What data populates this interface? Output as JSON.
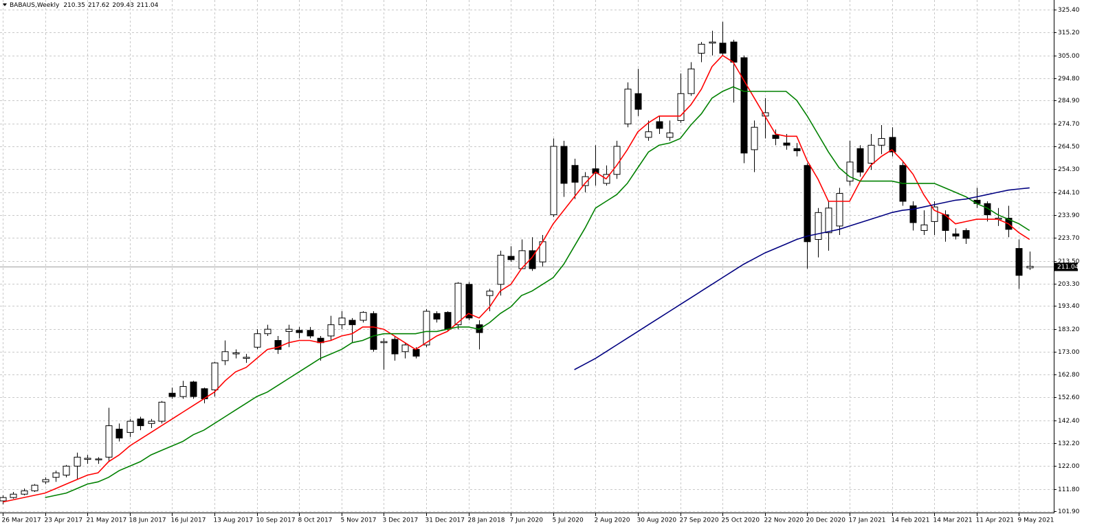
{
  "chart_data": {
    "type": "candlestick",
    "title": "BABAUS,Weekly",
    "categories": [
      "26 Mar 2017",
      null,
      null,
      null,
      "23 Apr 2017",
      null,
      null,
      null,
      "21 May 2017",
      null,
      null,
      null,
      "18 Jun 2017",
      null,
      null,
      null,
      "16 Jul 2017",
      null,
      null,
      null,
      "13 Aug 2017",
      null,
      null,
      null,
      "10 Sep 2017",
      null,
      null,
      null,
      "8 Oct 2017",
      null,
      null,
      null,
      "5 Nov 2017",
      null,
      null,
      null,
      "3 Dec 2017",
      null,
      null,
      null,
      "31 Dec 2017",
      null,
      null,
      null,
      "28 Jan 2018",
      null,
      null,
      null,
      "7 Jun 2020",
      null,
      null,
      null,
      "5 Jul 2020",
      null,
      null,
      null,
      "2 Aug 2020",
      null,
      null,
      null,
      "30 Aug 2020",
      null,
      null,
      null,
      "27 Sep 2020",
      null,
      null,
      null,
      "25 Oct 2020",
      null,
      null,
      null,
      "22 Nov 2020",
      null,
      null,
      null,
      "20 Dec 2020",
      null,
      null,
      null,
      "17 Jan 2021",
      null,
      null,
      null,
      "14 Feb 2021",
      null,
      null,
      null,
      "14 Mar 2021",
      null,
      null,
      null,
      "11 Apr 2021",
      null,
      null,
      null,
      "9 May 2021",
      null
    ],
    "open": [
      106.5,
      108,
      109.5,
      111,
      115,
      117,
      118,
      122,
      125,
      124.8,
      126,
      138.5,
      137,
      143,
      141,
      142,
      154.5,
      153,
      159.5,
      156.5,
      156,
      169,
      172,
      170,
      175,
      181,
      178,
      182,
      182.5,
      182.5,
      179,
      180,
      185,
      187,
      187,
      190,
      177,
      178.5,
      173,
      174,
      176,
      190,
      190.5,
      185,
      203,
      185,
      198,
      203,
      215.5,
      210,
      218,
      213,
      234,
      264.5,
      256,
      247,
      254.5,
      248,
      252,
      274.5,
      288,
      268.5,
      275.5,
      268.5,
      276,
      288,
      306,
      310.5,
      310.5,
      311,
      304,
      263,
      278,
      269.5,
      266,
      263.5,
      256,
      223,
      226,
      229,
      249,
      263.5,
      257,
      265,
      268.5,
      256,
      238,
      227,
      231,
      234,
      225.5,
      227,
      240.5,
      239,
      232,
      232.5,
      219,
      210.35
    ],
    "high": [
      109,
      110.5,
      112,
      114,
      117,
      120,
      122.5,
      128,
      127,
      126,
      148,
      141,
      143,
      144,
      143,
      151,
      157,
      160,
      160,
      157,
      168.5,
      178,
      174,
      172,
      183,
      185,
      180,
      185,
      184,
      184,
      180,
      189,
      191,
      188,
      191,
      191,
      179,
      180,
      177,
      175,
      192,
      191,
      191,
      204,
      204,
      187,
      201,
      218,
      220,
      223,
      224,
      225,
      268,
      267,
      259,
      253,
      265,
      256,
      267,
      293,
      299,
      276,
      278,
      276,
      297,
      302,
      311,
      316,
      320,
      312,
      305,
      276,
      286,
      272,
      270,
      266,
      257,
      237,
      240,
      246,
      267,
      265,
      270,
      274,
      273,
      258,
      240,
      236,
      240,
      236,
      228,
      228,
      246,
      240,
      237,
      238,
      223,
      217.62
    ],
    "low": [
      105,
      107.5,
      109,
      110.5,
      114,
      115,
      117,
      116,
      123,
      123,
      124,
      133,
      135,
      138,
      139,
      141,
      152,
      152,
      152,
      150,
      153,
      167,
      170,
      168,
      174,
      180,
      172,
      175,
      179,
      179,
      169,
      178,
      183,
      177,
      186,
      173,
      165,
      169,
      170,
      170,
      175,
      186,
      182,
      183,
      187,
      174,
      191,
      198,
      213,
      210,
      209,
      211,
      233,
      242,
      241,
      244,
      247,
      247,
      250,
      273,
      278,
      267,
      270,
      267,
      275,
      287,
      302,
      305,
      305,
      284,
      257,
      253,
      268,
      265,
      263,
      260,
      210,
      215,
      218,
      225,
      247,
      251,
      254,
      261,
      260,
      238,
      227,
      225,
      225,
      222,
      223,
      221,
      237,
      231,
      229,
      224,
      201,
      209.43
    ],
    "close": [
      108,
      109.5,
      111,
      113.5,
      116,
      119,
      122,
      126,
      125.5,
      125.2,
      140,
      134.5,
      142,
      140,
      142,
      150.5,
      153,
      157.5,
      153,
      152,
      168,
      173,
      172.5,
      170.5,
      181,
      183,
      174,
      183,
      181.5,
      180,
      177,
      185,
      188,
      185,
      190.5,
      174,
      177.5,
      172,
      176,
      171,
      191,
      187.5,
      183,
      203.5,
      188,
      181.5,
      200,
      216,
      214,
      218,
      210,
      222,
      264.5,
      248,
      248.5,
      251,
      252.5,
      252,
      264.5,
      290,
      281,
      271,
      272.5,
      270.5,
      288,
      299,
      310,
      311,
      306,
      302,
      261.5,
      273,
      279.5,
      268,
      265,
      262.5,
      222,
      235,
      237,
      243.5,
      257.5,
      253,
      265,
      268,
      262,
      240,
      230.5,
      229.5,
      237.5,
      227,
      224.5,
      223.5,
      239,
      234,
      232.5,
      227.5,
      207,
      211.04
    ],
    "series": [
      {
        "color": "#ff0000",
        "values": [
          106,
          107,
          108,
          109,
          110,
          112,
          114,
          116,
          118,
          119,
          124,
          127,
          131,
          134,
          137,
          140,
          143,
          146,
          149,
          152,
          155,
          160,
          164,
          166,
          170,
          174,
          175,
          177,
          178,
          178,
          177,
          178,
          180,
          181,
          184,
          184,
          183,
          180,
          177,
          174,
          177,
          180,
          182,
          186,
          190,
          188,
          193,
          200,
          203,
          210,
          215,
          222,
          230,
          236,
          242,
          248,
          253,
          250,
          256,
          263,
          271,
          275,
          278,
          278,
          278,
          283,
          290,
          300,
          305,
          302,
          294,
          286,
          278,
          270,
          269,
          269,
          258,
          250,
          240,
          240,
          240,
          249,
          256,
          260,
          263,
          258,
          252,
          243,
          236,
          234,
          230,
          231,
          232,
          232,
          232,
          230,
          226,
          223
        ]
      },
      {
        "color": "#008000",
        "values": [
          null,
          null,
          null,
          null,
          108,
          109,
          110,
          112,
          114,
          115,
          117,
          120,
          122,
          124,
          127,
          129,
          131,
          133,
          136,
          138,
          141,
          144,
          147,
          150,
          153,
          155,
          158,
          161,
          164,
          167,
          170,
          172,
          174,
          177,
          178,
          180,
          181,
          181,
          181,
          181,
          182,
          182,
          183,
          184,
          184,
          183,
          186,
          190,
          193,
          198,
          200,
          203,
          206,
          212,
          220,
          228,
          237,
          240,
          243,
          248,
          255,
          262,
          265,
          266,
          268,
          274,
          279,
          286,
          289,
          291,
          289,
          289,
          289,
          289,
          289,
          285,
          278,
          270,
          262,
          255,
          251,
          249,
          249,
          249,
          249,
          248,
          248,
          248,
          248,
          246,
          244,
          242,
          239,
          237,
          234,
          232,
          230,
          227
        ]
      },
      {
        "color": "#000080",
        "values": [
          null,
          null,
          null,
          null,
          null,
          null,
          null,
          null,
          null,
          null,
          null,
          null,
          null,
          null,
          null,
          null,
          null,
          null,
          null,
          null,
          null,
          null,
          null,
          null,
          null,
          null,
          null,
          null,
          null,
          null,
          null,
          null,
          null,
          null,
          null,
          null,
          null,
          null,
          null,
          null,
          null,
          null,
          null,
          null,
          null,
          null,
          null,
          null,
          null,
          null,
          null,
          null,
          null,
          null,
          165,
          167.5,
          170,
          173,
          176,
          179,
          182,
          185,
          188,
          191,
          194,
          197,
          200,
          203,
          206,
          209,
          212,
          214.5,
          217,
          219,
          221,
          223,
          224.5,
          225.5,
          226.5,
          227.5,
          229,
          230.5,
          232,
          233.5,
          235,
          236,
          236.5,
          237.5,
          238.5,
          239.5,
          240.5,
          241,
          242,
          243,
          244,
          245,
          245.5,
          246
        ]
      }
    ],
    "ylim": [
      101.3,
      329.1
    ],
    "yticks": [
      {
        "value": 101.9,
        "label": "101.90"
      },
      {
        "value": 111.8,
        "label": "111.80"
      },
      {
        "value": 122,
        "label": "122.00"
      },
      {
        "value": 132.2,
        "label": "132.20"
      },
      {
        "value": 142.4,
        "label": "142.40"
      },
      {
        "value": 152.6,
        "label": "152.60"
      },
      {
        "value": 162.8,
        "label": "162.80"
      },
      {
        "value": 173,
        "label": "173.00"
      },
      {
        "value": 183.2,
        "label": "183.20"
      },
      {
        "value": 193.4,
        "label": "193.40"
      },
      {
        "value": 203.3,
        "label": "203.30"
      },
      {
        "value": 213.5,
        "label": "213.50"
      },
      {
        "value": 223.7,
        "label": "223.70"
      },
      {
        "value": 233.9,
        "label": "233.90"
      },
      {
        "value": 244.1,
        "label": "244.10"
      },
      {
        "value": 254.3,
        "label": "254.30"
      },
      {
        "value": 264.5,
        "label": "264.50"
      },
      {
        "value": 274.7,
        "label": "274.70"
      },
      {
        "value": 284.9,
        "label": "284.90"
      },
      {
        "value": 294.8,
        "label": "294.80"
      },
      {
        "value": 305,
        "label": "305.00"
      },
      {
        "value": 315.2,
        "label": "315.20"
      },
      {
        "value": 325.4,
        "label": "325.40"
      }
    ],
    "grid": true
  }
}
